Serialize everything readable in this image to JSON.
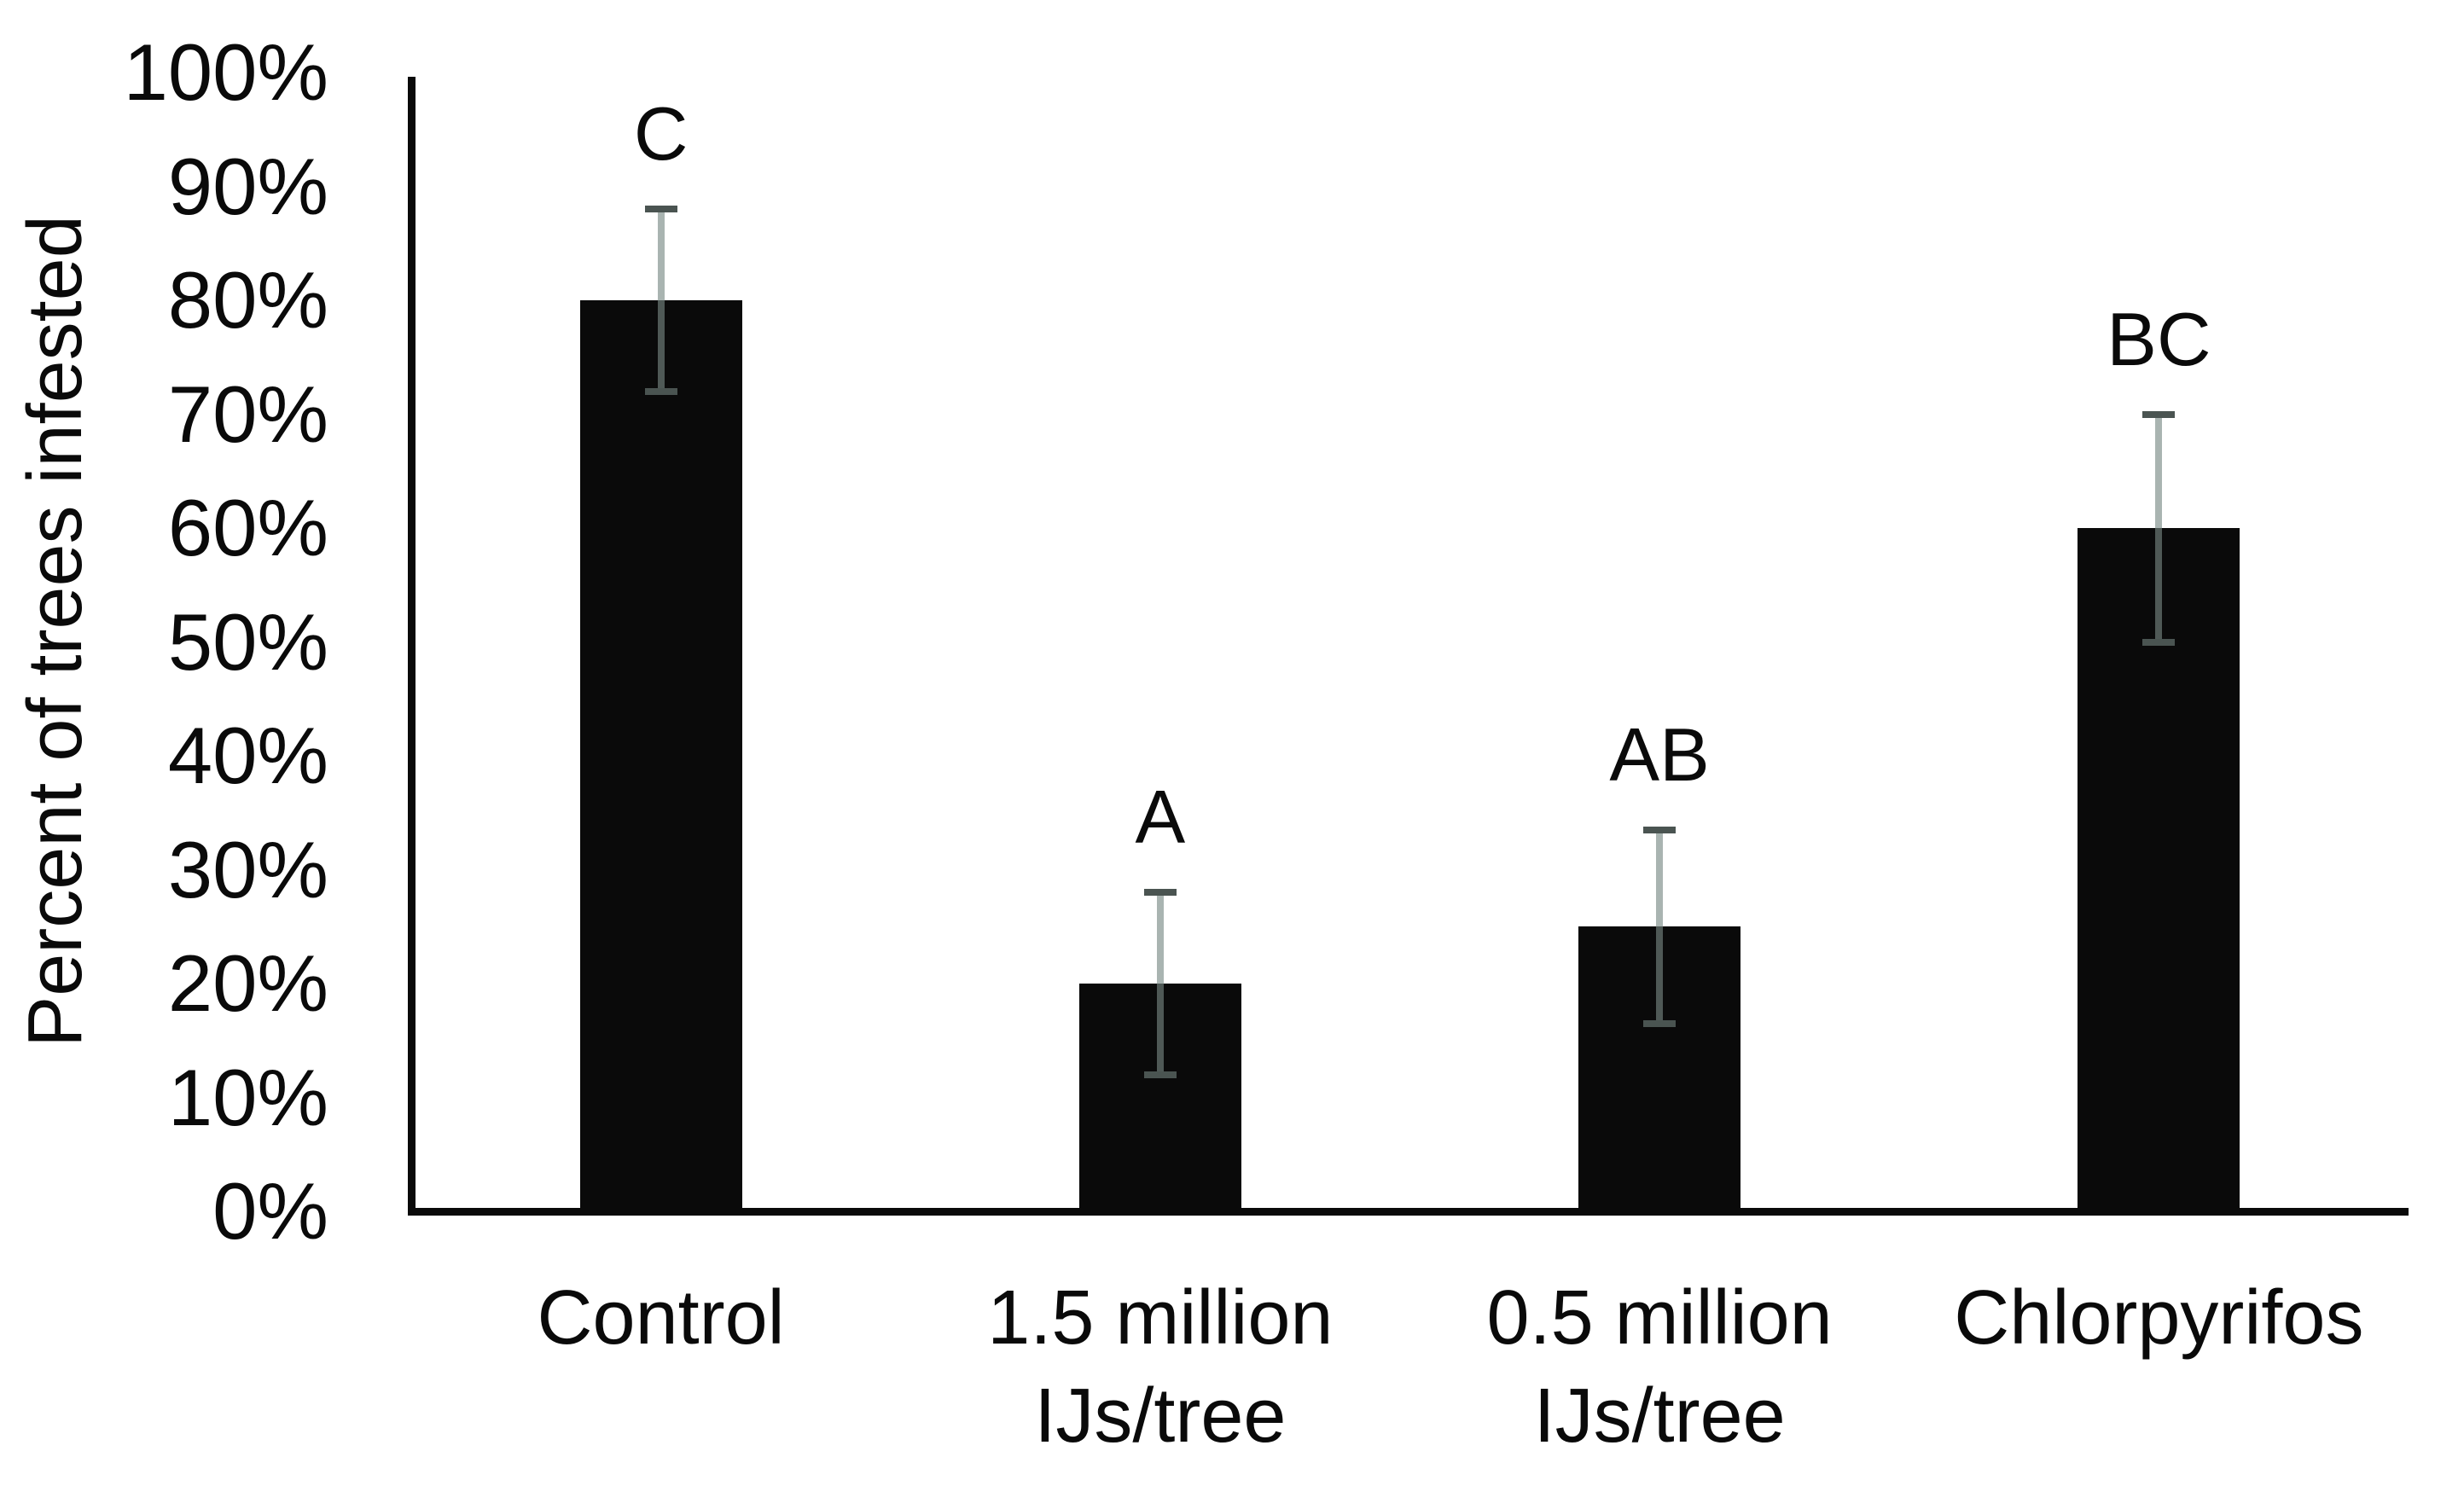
{
  "chart_data": {
    "type": "bar",
    "title": "",
    "ylabel": "Percent of trees infested",
    "xlabel": "",
    "categories": [
      "Control",
      "1.5 million IJs/tree",
      "0.5 million IJs/tree",
      "Chlorpyrifos"
    ],
    "category_lines": [
      [
        "Control"
      ],
      [
        "1.5 million",
        "IJs/tree"
      ],
      [
        "0.5 million",
        "IJs/tree"
      ],
      [
        "Chlorpyrifos"
      ]
    ],
    "values": [
      80,
      20,
      25,
      60
    ],
    "error_high": [
      88,
      28,
      33.5,
      70
    ],
    "error_low": [
      72,
      12,
      16.5,
      50
    ],
    "significance_letters": [
      "C",
      "A",
      "AB",
      "BC"
    ],
    "y_ticks": [
      0,
      10,
      20,
      30,
      40,
      50,
      60,
      70,
      80,
      90,
      100
    ],
    "y_tick_labels": [
      "0%",
      "10%",
      "20%",
      "30%",
      "40%",
      "50%",
      "60%",
      "70%",
      "80%",
      "90%",
      "100%"
    ],
    "ylim": [
      0,
      100
    ],
    "grid": false,
    "legend": "none",
    "colors": {
      "bar": "#0a0a0a",
      "axis": "#0a0a0a",
      "text": "#0a0a0a",
      "error_stem_light": "#a9b4b1",
      "error_stem_dark": "#4f5956",
      "error_cap": "#4a5451",
      "background": "#ffffff"
    }
  }
}
